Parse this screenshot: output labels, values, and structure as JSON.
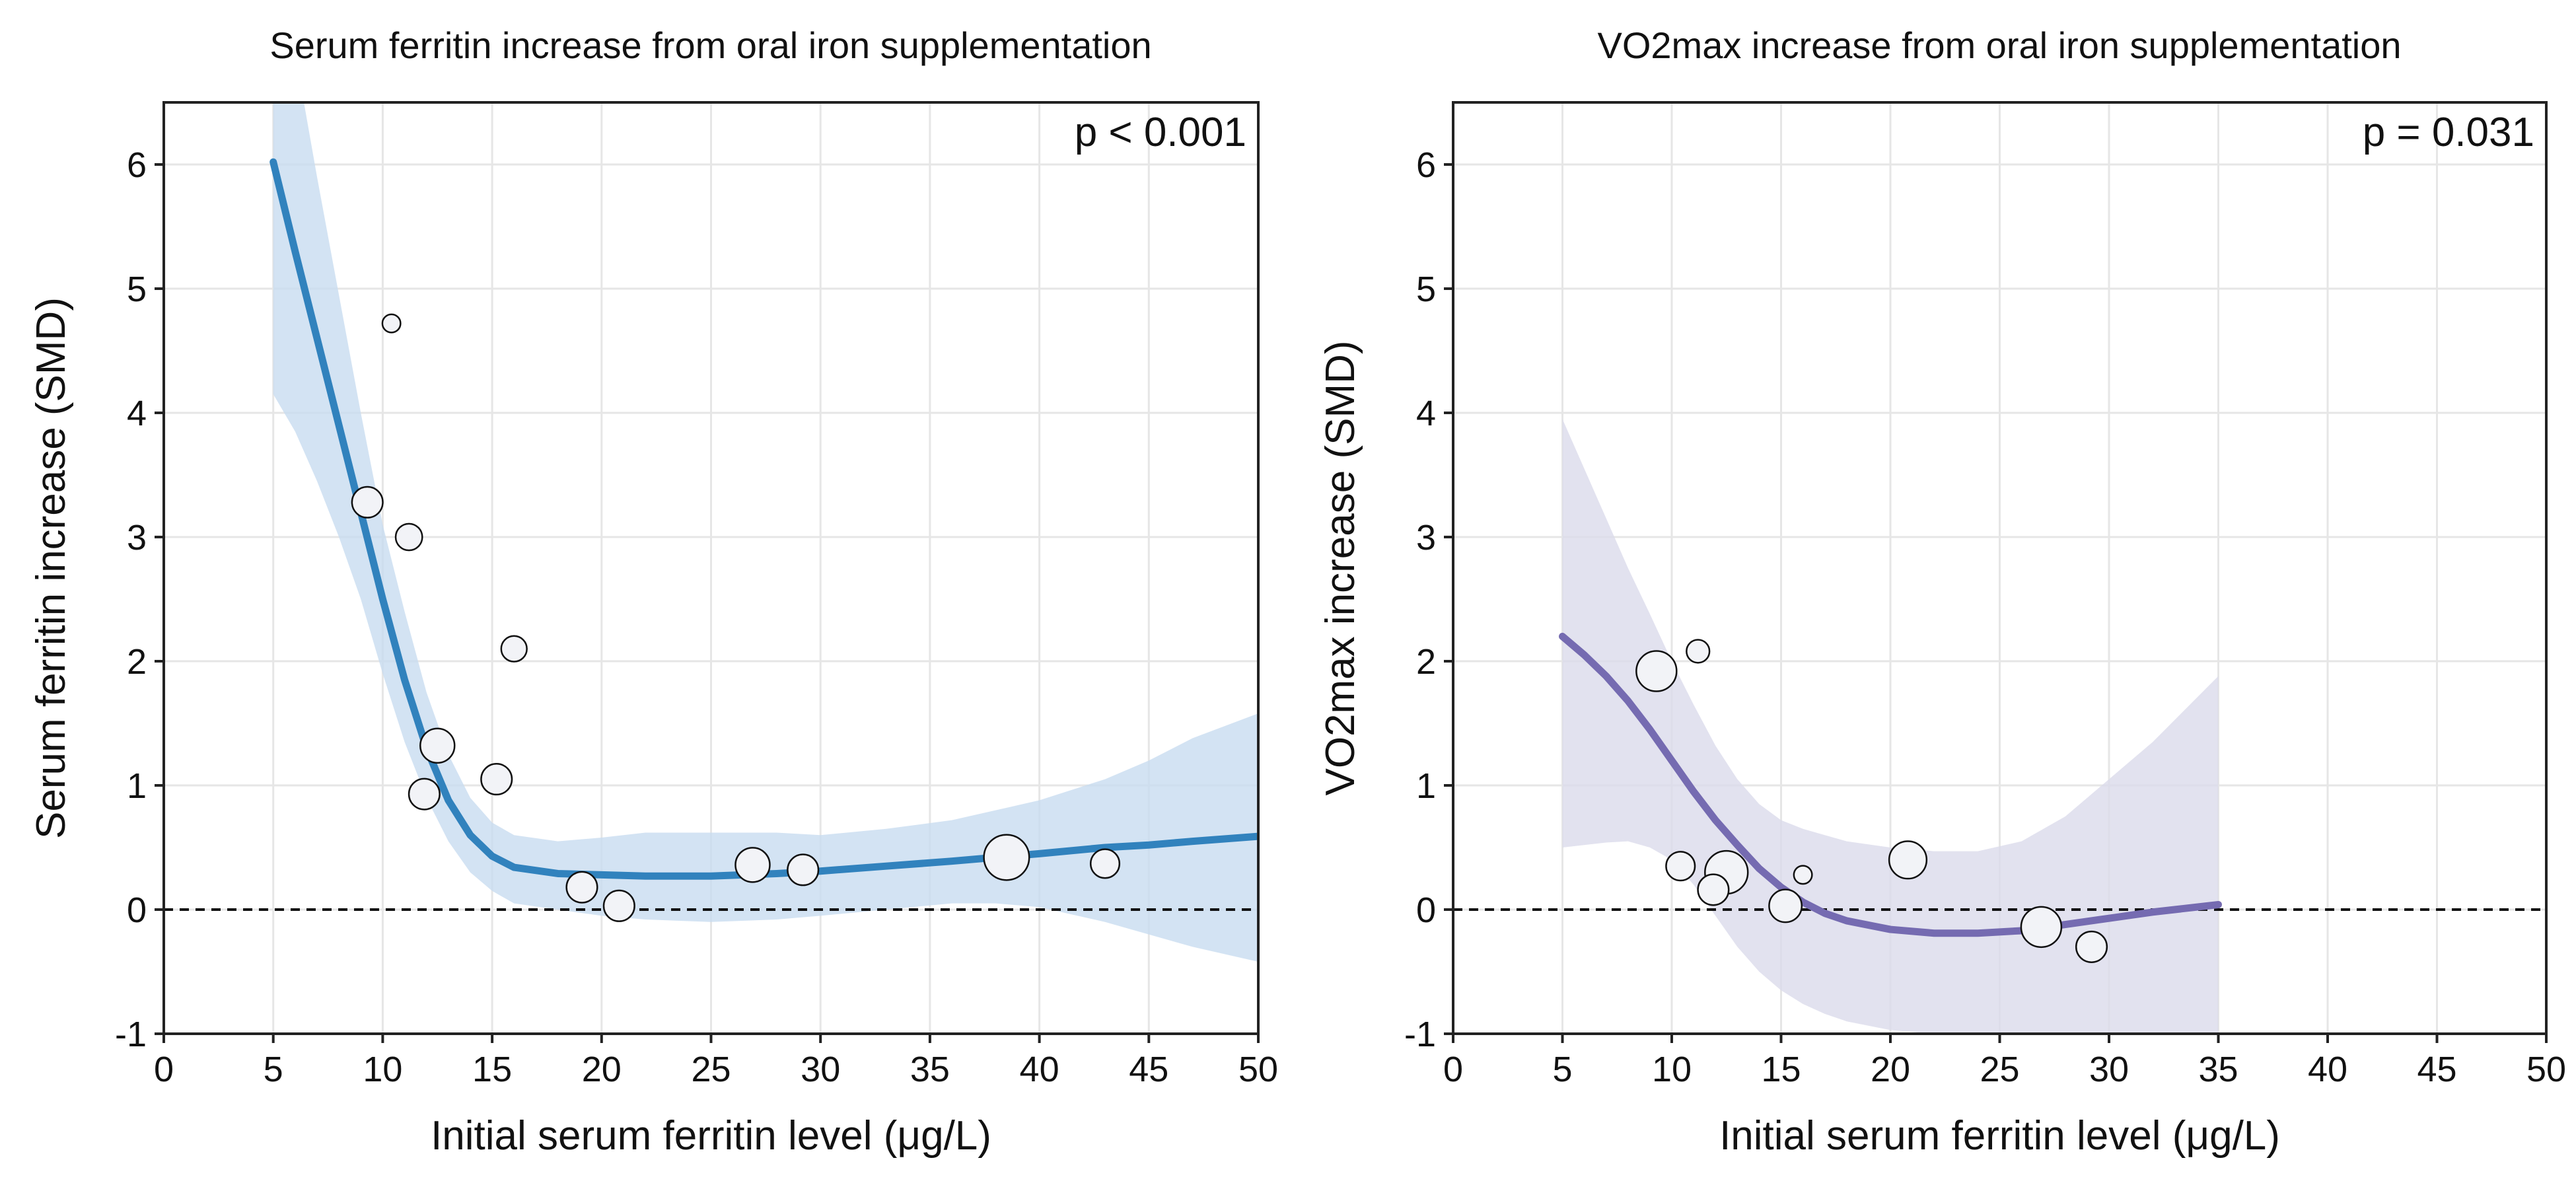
{
  "chart_data": [
    {
      "type": "scatter",
      "title": "Serum ferritin increase from oral iron supplementation",
      "xlabel": "Initial serum ferritin level (μg/L)",
      "ylabel": "Serum ferritin increase (SMD)",
      "xlim": [
        0,
        50
      ],
      "ylim": [
        -1,
        6.5
      ],
      "xticks": [
        0,
        5,
        10,
        15,
        20,
        25,
        30,
        35,
        40,
        45,
        50
      ],
      "yticks": [
        -1,
        0,
        1,
        2,
        3,
        4,
        5,
        6
      ],
      "annotation": "p < 0.001",
      "reference_line_y": 0,
      "grid": true,
      "color_line": "#3182bd",
      "color_band": "#c6dbef",
      "points": [
        {
          "x": 9.3,
          "y": 3.28,
          "weight": 3
        },
        {
          "x": 10.4,
          "y": 4.72,
          "weight": 0.6
        },
        {
          "x": 11.2,
          "y": 3.0,
          "weight": 2
        },
        {
          "x": 11.9,
          "y": 0.93,
          "weight": 3
        },
        {
          "x": 12.5,
          "y": 1.32,
          "weight": 4
        },
        {
          "x": 15.2,
          "y": 1.05,
          "weight": 3
        },
        {
          "x": 16.0,
          "y": 2.1,
          "weight": 1.8
        },
        {
          "x": 19.1,
          "y": 0.18,
          "weight": 3
        },
        {
          "x": 20.8,
          "y": 0.03,
          "weight": 3
        },
        {
          "x": 26.9,
          "y": 0.36,
          "weight": 4
        },
        {
          "x": 29.2,
          "y": 0.32,
          "weight": 3
        },
        {
          "x": 38.5,
          "y": 0.42,
          "weight": 8
        },
        {
          "x": 43.0,
          "y": 0.37,
          "weight": 2.5
        }
      ],
      "fit": [
        {
          "x": 5,
          "y": 6.02,
          "lo": 4.15,
          "hi": 7.9
        },
        {
          "x": 6,
          "y": 5.3,
          "lo": 3.85,
          "hi": 6.9
        },
        {
          "x": 7,
          "y": 4.6,
          "lo": 3.45,
          "hi": 5.9
        },
        {
          "x": 8,
          "y": 3.9,
          "lo": 3.0,
          "hi": 4.95
        },
        {
          "x": 9,
          "y": 3.2,
          "lo": 2.5,
          "hi": 4.0
        },
        {
          "x": 10,
          "y": 2.5,
          "lo": 1.9,
          "hi": 3.1
        },
        {
          "x": 11,
          "y": 1.85,
          "lo": 1.35,
          "hi": 2.4
        },
        {
          "x": 12,
          "y": 1.3,
          "lo": 0.9,
          "hi": 1.75
        },
        {
          "x": 13,
          "y": 0.88,
          "lo": 0.55,
          "hi": 1.25
        },
        {
          "x": 14,
          "y": 0.6,
          "lo": 0.3,
          "hi": 0.9
        },
        {
          "x": 15,
          "y": 0.43,
          "lo": 0.15,
          "hi": 0.7
        },
        {
          "x": 16,
          "y": 0.34,
          "lo": 0.05,
          "hi": 0.6
        },
        {
          "x": 18,
          "y": 0.29,
          "lo": 0.0,
          "hi": 0.55
        },
        {
          "x": 20,
          "y": 0.28,
          "lo": -0.05,
          "hi": 0.58
        },
        {
          "x": 22,
          "y": 0.27,
          "lo": -0.08,
          "hi": 0.62
        },
        {
          "x": 25,
          "y": 0.27,
          "lo": -0.1,
          "hi": 0.62
        },
        {
          "x": 28,
          "y": 0.29,
          "lo": -0.08,
          "hi": 0.62
        },
        {
          "x": 30,
          "y": 0.31,
          "lo": -0.05,
          "hi": 0.6
        },
        {
          "x": 33,
          "y": 0.35,
          "lo": 0.0,
          "hi": 0.65
        },
        {
          "x": 36,
          "y": 0.39,
          "lo": 0.05,
          "hi": 0.72
        },
        {
          "x": 38,
          "y": 0.42,
          "lo": 0.05,
          "hi": 0.8
        },
        {
          "x": 40,
          "y": 0.45,
          "lo": 0.02,
          "hi": 0.88
        },
        {
          "x": 43,
          "y": 0.5,
          "lo": -0.1,
          "hi": 1.05
        },
        {
          "x": 45,
          "y": 0.52,
          "lo": -0.2,
          "hi": 1.2
        },
        {
          "x": 47,
          "y": 0.55,
          "lo": -0.3,
          "hi": 1.38
        },
        {
          "x": 50,
          "y": 0.59,
          "lo": -0.42,
          "hi": 1.58
        }
      ]
    },
    {
      "type": "scatter",
      "title": "VO2max increase from oral iron supplementation",
      "xlabel": "Initial serum ferritin level (μg/L)",
      "ylabel": "VO2max increase (SMD)",
      "xlim": [
        0,
        50
      ],
      "ylim": [
        -1,
        6.5
      ],
      "xticks": [
        0,
        5,
        10,
        15,
        20,
        25,
        30,
        35,
        40,
        45,
        50
      ],
      "yticks": [
        -1,
        0,
        1,
        2,
        3,
        4,
        5,
        6
      ],
      "annotation": "p = 0.031",
      "reference_line_y": 0,
      "grid": true,
      "color_line": "#756bb1",
      "color_band": "#dadaeb",
      "points": [
        {
          "x": 9.3,
          "y": 1.92,
          "weight": 6
        },
        {
          "x": 10.4,
          "y": 0.35,
          "weight": 2.5
        },
        {
          "x": 11.2,
          "y": 2.08,
          "weight": 1.3
        },
        {
          "x": 11.9,
          "y": 0.16,
          "weight": 3
        },
        {
          "x": 12.5,
          "y": 0.3,
          "weight": 7
        },
        {
          "x": 15.2,
          "y": 0.03,
          "weight": 3.5
        },
        {
          "x": 16.0,
          "y": 0.28,
          "weight": 0.6
        },
        {
          "x": 20.8,
          "y": 0.4,
          "weight": 5
        },
        {
          "x": 26.9,
          "y": -0.14,
          "weight": 6
        },
        {
          "x": 29.2,
          "y": -0.3,
          "weight": 3
        }
      ],
      "fit": [
        {
          "x": 5,
          "y": 2.2,
          "lo": 0.5,
          "hi": 3.95
        },
        {
          "x": 6,
          "y": 2.05,
          "lo": 0.52,
          "hi": 3.55
        },
        {
          "x": 7,
          "y": 1.88,
          "lo": 0.54,
          "hi": 3.15
        },
        {
          "x": 8,
          "y": 1.68,
          "lo": 0.55,
          "hi": 2.75
        },
        {
          "x": 9,
          "y": 1.45,
          "lo": 0.5,
          "hi": 2.38
        },
        {
          "x": 10,
          "y": 1.2,
          "lo": 0.4,
          "hi": 2.0
        },
        {
          "x": 11,
          "y": 0.95,
          "lo": 0.2,
          "hi": 1.65
        },
        {
          "x": 12,
          "y": 0.72,
          "lo": -0.05,
          "hi": 1.32
        },
        {
          "x": 13,
          "y": 0.52,
          "lo": -0.3,
          "hi": 1.05
        },
        {
          "x": 14,
          "y": 0.33,
          "lo": -0.5,
          "hi": 0.85
        },
        {
          "x": 15,
          "y": 0.18,
          "lo": -0.65,
          "hi": 0.72
        },
        {
          "x": 16,
          "y": 0.06,
          "lo": -0.76,
          "hi": 0.65
        },
        {
          "x": 17,
          "y": -0.03,
          "lo": -0.84,
          "hi": 0.6
        },
        {
          "x": 18,
          "y": -0.09,
          "lo": -0.9,
          "hi": 0.55
        },
        {
          "x": 20,
          "y": -0.16,
          "lo": -0.97,
          "hi": 0.5
        },
        {
          "x": 22,
          "y": -0.19,
          "lo": -1.0,
          "hi": 0.47
        },
        {
          "x": 24,
          "y": -0.19,
          "lo": -1.0,
          "hi": 0.47
        },
        {
          "x": 26,
          "y": -0.17,
          "lo": -1.0,
          "hi": 0.55
        },
        {
          "x": 28,
          "y": -0.12,
          "lo": -1.0,
          "hi": 0.75
        },
        {
          "x": 30,
          "y": -0.07,
          "lo": -1.0,
          "hi": 1.05
        },
        {
          "x": 32,
          "y": -0.02,
          "lo": -1.0,
          "hi": 1.35
        },
        {
          "x": 35,
          "y": 0.04,
          "lo": -1.0,
          "hi": 1.88
        }
      ]
    }
  ]
}
